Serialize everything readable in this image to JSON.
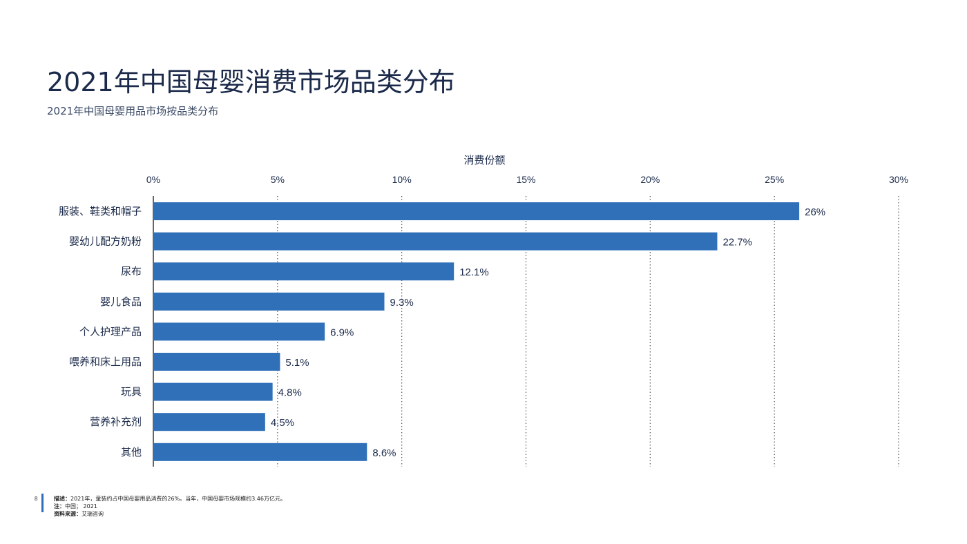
{
  "page": {
    "title": "2021年中国母婴消费市场品类分布",
    "subtitle": "2021年中国母婴用品市场按品类分布",
    "page_number": "8"
  },
  "footer": {
    "desc_label": "描述：",
    "desc_text": "2021年，童装约占中国母婴用品消费的26%。当年，中国母婴市场规模约3.46万亿元。",
    "note_label": "注：",
    "note_text": "中国； 2021",
    "source_label": "资料来源：",
    "source_text": "艾瑞咨询"
  },
  "colors": {
    "bar": "#3070b8",
    "axis": "#333333",
    "grid": "#555555"
  },
  "chart_data": {
    "type": "bar",
    "orientation": "horizontal",
    "xlabel": "消费份额",
    "xlim": [
      0,
      30
    ],
    "xticks": [
      "0%",
      "5%",
      "10%",
      "15%",
      "20%",
      "25%",
      "30%"
    ],
    "xtick_values": [
      0,
      5,
      10,
      15,
      20,
      25,
      30
    ],
    "grid": "vertical dotted",
    "categories": [
      "服装、鞋类和帽子",
      "婴幼儿配方奶粉",
      "尿布",
      "婴儿食品",
      "个人护理产品",
      "喂养和床上用品",
      "玩具",
      "营养补充剂",
      "其他"
    ],
    "values": [
      26,
      22.7,
      12.1,
      9.3,
      6.9,
      5.1,
      4.8,
      4.5,
      8.6
    ],
    "value_labels": [
      "26%",
      "22.7%",
      "12.1%",
      "9.3%",
      "6.9%",
      "5.1%",
      "4.8%",
      "4.5%",
      "8.6%"
    ]
  }
}
